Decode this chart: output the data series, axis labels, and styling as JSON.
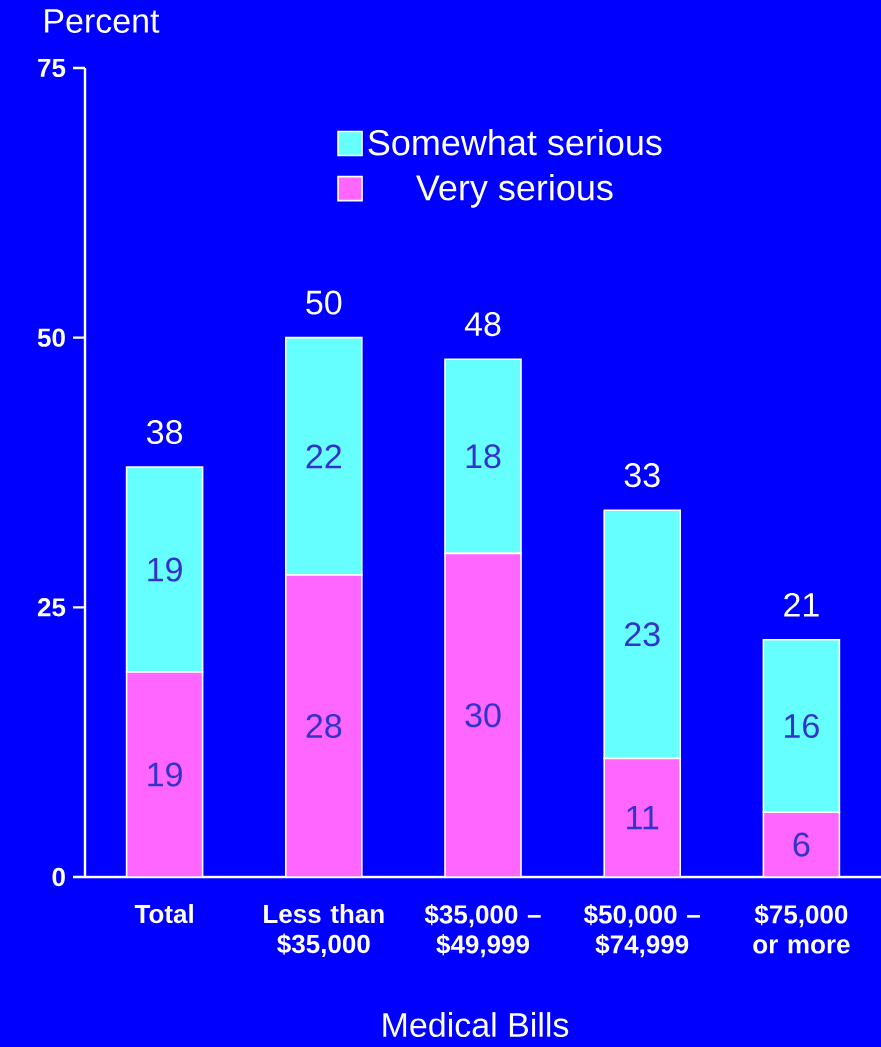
{
  "chart_data": {
    "type": "bar",
    "stacked": true,
    "xlabel": "Medical Bills",
    "ylabel": "Percent",
    "categories": [
      "Total",
      "Less than $35,000",
      "$35,000 – $49,999",
      "$50,000 – $74,999",
      "$75,000 or more"
    ],
    "series": [
      {
        "name": "Very serious",
        "color": "#ff66ff",
        "values": [
          19,
          28,
          30,
          11,
          6
        ]
      },
      {
        "name": "Somewhat serious",
        "color": "#66ffff",
        "values": [
          19,
          22,
          18,
          23,
          16
        ]
      }
    ],
    "totals": [
      "38",
      "50",
      "48",
      "33",
      "21"
    ],
    "data_labels": true,
    "ylim": [
      0,
      75
    ],
    "yticks": [
      0,
      25,
      50,
      75
    ],
    "legend": "top"
  }
}
